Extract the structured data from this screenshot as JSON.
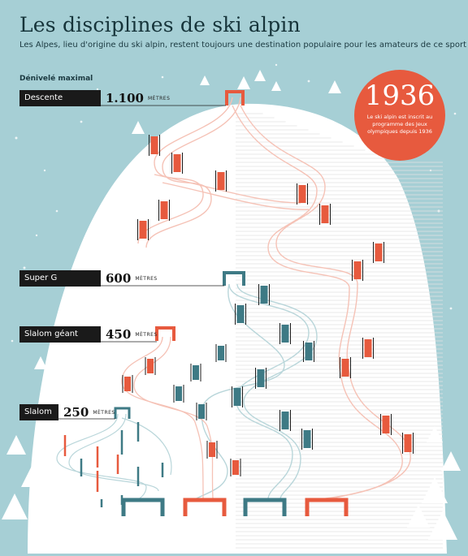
{
  "title": "Les disciplines de ski alpin",
  "subtitle": "Les Alpes, lieu d'origine du ski alpin, restent toujours une destination populaire pour les amateurs de ce sport",
  "vertical_drop_label": "Dénivelé maximal",
  "disciplines": [
    {
      "name": "Descente",
      "value": "1.100",
      "unit": "MÈTRES"
    },
    {
      "name": "Super G",
      "value": "600",
      "unit": "MÈTRES"
    },
    {
      "name": "Slalom géant",
      "value": "450",
      "unit": "MÈTRES"
    },
    {
      "name": "Slalom",
      "value": "250",
      "unit": "MÈTRES"
    }
  ],
  "badge": {
    "year": "1936",
    "text": "Le ski alpin est inscrit au programme des Jeux olympiques depuis 1936"
  },
  "colors": {
    "background": "#a6cfd5",
    "mountain": "#ffffff",
    "descente": "#e75a3e",
    "super_g": "#3e7a85",
    "slalom_geant": "#e75a3e",
    "slalom": "#3e7a85",
    "tree": "#ffffff"
  }
}
